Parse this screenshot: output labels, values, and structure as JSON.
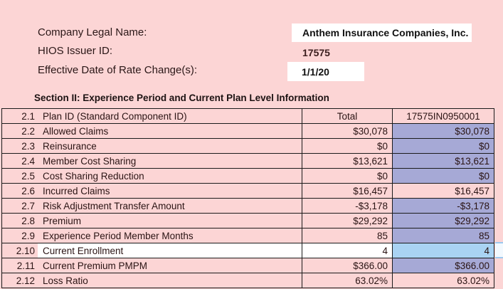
{
  "form": {
    "company": {
      "label": "Company Legal Name:",
      "value": "Anthem Insurance Companies, Inc."
    },
    "issuer": {
      "label": "HIOS Issuer ID:",
      "value": "17575"
    },
    "effective_date": {
      "label": "Effective Date of Rate Change(s):",
      "value": "1/1/20"
    }
  },
  "section": {
    "title": "Section II: Experience Period and Current Plan Level Information"
  },
  "table": {
    "rows": [
      {
        "num": "2.1",
        "label": "Plan ID (Standard Component ID)",
        "total": "Total",
        "plan": "17575IN0950001",
        "header": true,
        "plan_fill": "pink",
        "row_fill": "pink"
      },
      {
        "num": "2.2",
        "label": "Allowed Claims",
        "total": "$30,078",
        "plan": "$30,078",
        "header": false,
        "plan_fill": "purple",
        "row_fill": "pink"
      },
      {
        "num": "2.3",
        "label": "Reinsurance",
        "total": "$0",
        "plan": "$0",
        "header": false,
        "plan_fill": "purple",
        "row_fill": "pink"
      },
      {
        "num": "2.4",
        "label": "Member Cost Sharing",
        "total": "$13,621",
        "plan": "$13,621",
        "header": false,
        "plan_fill": "purple",
        "row_fill": "pink"
      },
      {
        "num": "2.5",
        "label": "Cost Sharing Reduction",
        "total": "$0",
        "plan": "$0",
        "header": false,
        "plan_fill": "purple",
        "row_fill": "pink"
      },
      {
        "num": "2.6",
        "label": "Incurred Claims",
        "total": "$16,457",
        "plan": "$16,457",
        "header": false,
        "plan_fill": "pink",
        "row_fill": "pink"
      },
      {
        "num": "2.7",
        "label": "Risk Adjustment Transfer Amount",
        "total": "-$3,178",
        "plan": "-$3,178",
        "header": false,
        "plan_fill": "purple",
        "row_fill": "pink"
      },
      {
        "num": "2.8",
        "label": "Premium",
        "total": "$29,292",
        "plan": "$29,292",
        "header": false,
        "plan_fill": "purple",
        "row_fill": "pink"
      },
      {
        "num": "2.9",
        "label": "Experience Period Member Months",
        "total": "85",
        "plan": "85",
        "header": false,
        "plan_fill": "purple",
        "row_fill": "pink"
      },
      {
        "num": "2.10",
        "label": "Current Enrollment",
        "total": "4",
        "plan": "4",
        "header": false,
        "plan_fill": "blue",
        "row_fill": "white"
      },
      {
        "num": "2.11",
        "label": "Current Premium PMPM",
        "total": "$366.00",
        "plan": "$366.00",
        "header": false,
        "plan_fill": "purple",
        "row_fill": "pink"
      },
      {
        "num": "2.12",
        "label": "Loss Ratio",
        "total": "63.02%",
        "plan": "63.02%",
        "header": false,
        "plan_fill": "pink",
        "row_fill": "pink"
      }
    ]
  },
  "colors": {
    "background_pink": "#fcd5d5",
    "input_cell_purple": "#a6a9d6",
    "selected_cell_blue": "#a9d3f3",
    "selection_border_blue": "#9dc9ef",
    "grid_border": "#1b1b1b",
    "white_cell": "#ffffff"
  }
}
